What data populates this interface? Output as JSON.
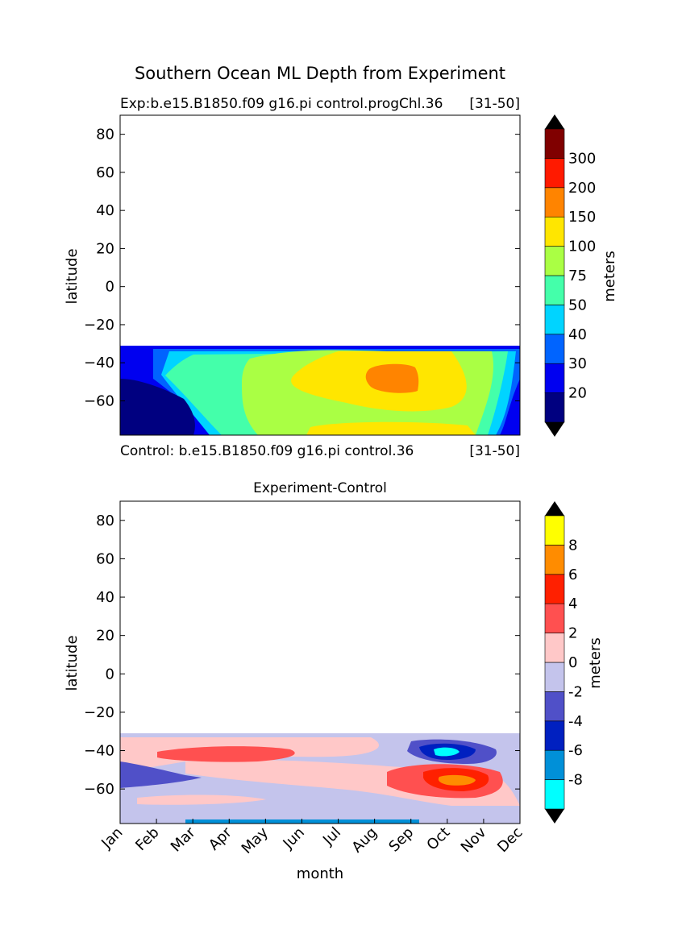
{
  "figure": {
    "title": "Southern Ocean ML Depth from Experiment",
    "xlabel": "month",
    "months": [
      "Jan",
      "Feb",
      "Mar",
      "Apr",
      "May",
      "Jun",
      "Jul",
      "Aug",
      "Sep",
      "Oct",
      "Nov",
      "Dec"
    ]
  },
  "chart_data": [
    {
      "type": "heatmap",
      "subtitle_left": "Exp:b.e15.B1850.f09 g16.pi control.progChl.36",
      "subtitle_right": "[31-50]",
      "caption_left": "Control: b.e15.B1850.f09 g16.pi control.36",
      "caption_right": "[31-50]",
      "ylabel": "latitude",
      "yticks": [
        80,
        60,
        40,
        20,
        0,
        -20,
        -40,
        -60
      ],
      "ylim": [
        -78,
        90
      ],
      "data_lat_range": [
        -78,
        -31
      ],
      "colorbar": {
        "label": "meters",
        "extend": "both",
        "levels": [
          "20",
          "30",
          "40",
          "50",
          "75",
          "100",
          "150",
          "200",
          "300"
        ],
        "colors": [
          "#000080",
          "#0000f0",
          "#0064ff",
          "#00d4ff",
          "#44ffaa",
          "#aaff44",
          "#ffe600",
          "#ff8400",
          "#ff1a00",
          "#800000"
        ]
      },
      "fields": [
        {
          "level_index": 0,
          "region": "deep-southern-early-year"
        },
        {
          "level_index": 5,
          "region": "mid-latitude-winter-core"
        },
        {
          "level_index": 7,
          "region": "maximum-winter-core"
        }
      ]
    },
    {
      "type": "heatmap",
      "title": "Experiment-Control",
      "ylabel": "latitude",
      "yticks": [
        80,
        60,
        40,
        20,
        0,
        -20,
        -40,
        -60
      ],
      "ylim": [
        -78,
        90
      ],
      "data_lat_range": [
        -78,
        -31
      ],
      "colorbar": {
        "label": "meters",
        "extend": "both",
        "levels": [
          "-8",
          "-6",
          "-4",
          "-2",
          "0",
          "2",
          "4",
          "6",
          "8"
        ],
        "colors": [
          "#00ffff",
          "#0090d8",
          "#0020c0",
          "#5050c8",
          "#c4c4ec",
          "#ffc8c8",
          "#ff5050",
          "#ff2000",
          "#ff8c00",
          "#ffff00"
        ]
      }
    }
  ]
}
